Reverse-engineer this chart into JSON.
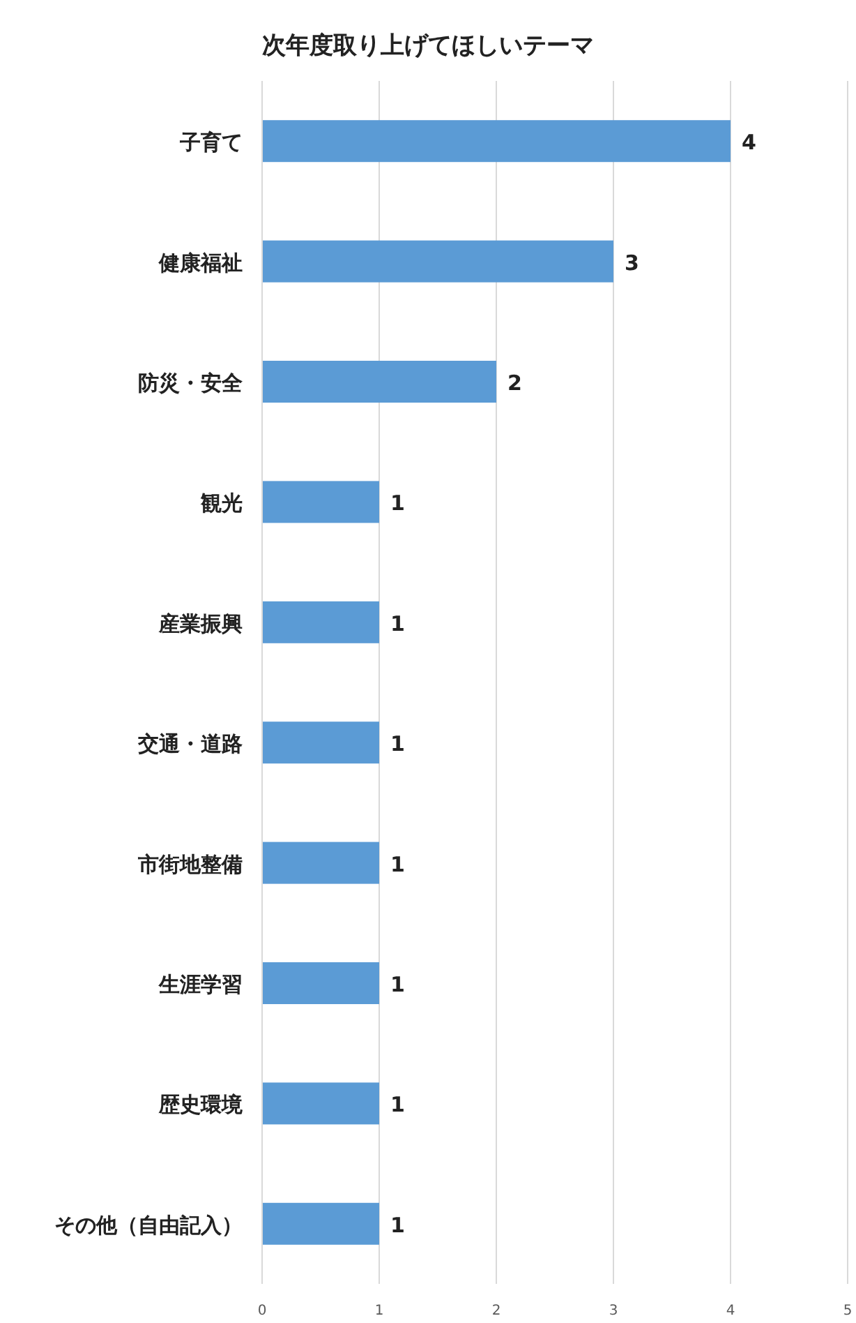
{
  "chart_data": {
    "type": "bar",
    "orientation": "horizontal",
    "title": "次年度取り上げてほしいテーマ",
    "categories": [
      "子育て",
      "健康福祉",
      "防災・安全",
      "観光",
      "産業振興",
      "交通・道路",
      "市街地整備",
      "生涯学習",
      "歴史環境",
      "その他（自由記入）"
    ],
    "values": [
      4,
      3,
      2,
      1,
      1,
      1,
      1,
      1,
      1,
      1
    ],
    "color": "#5b9bd5",
    "xlim": [
      0,
      5
    ],
    "xticks": [
      0,
      1,
      2,
      3,
      4,
      5
    ],
    "grid": "x",
    "data_labels": true
  }
}
